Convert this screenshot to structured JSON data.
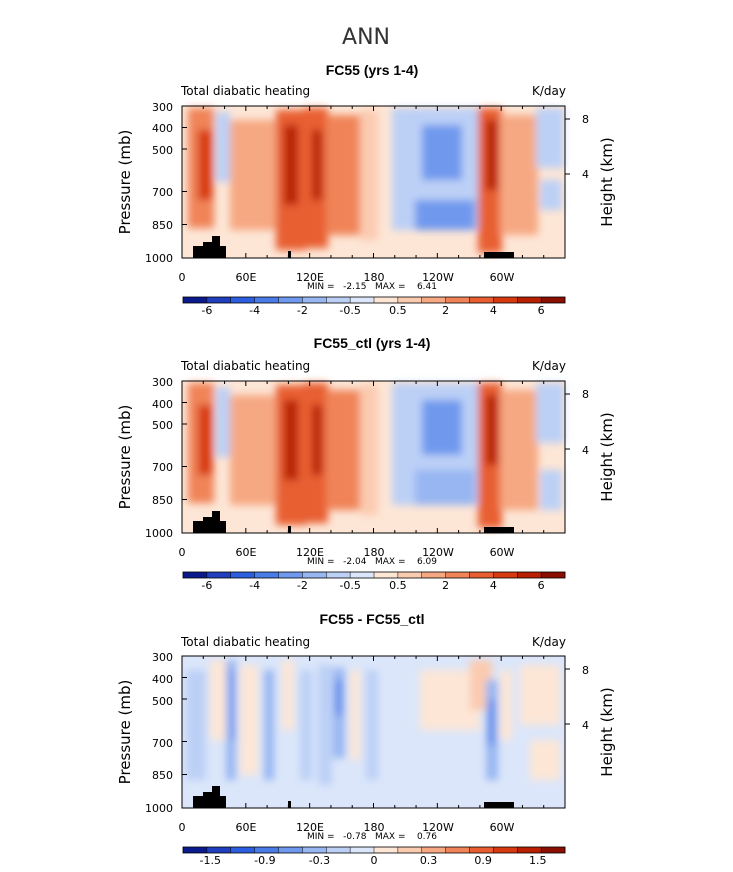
{
  "figure": {
    "title": "ANN"
  },
  "chart_data": [
    {
      "type": "heatmap",
      "title": "FC55 (yrs 1-4)",
      "left_label": "Total diabatic heating",
      "units": "K/day",
      "ylabel": "Pressure (mb)",
      "ylabel_right": "Height (km)",
      "y_ticks": [
        "300",
        "400",
        "500",
        "700",
        "850",
        "1000"
      ],
      "y_right_ticks": [
        "8",
        "4"
      ],
      "x_ticks": [
        "0",
        "60E",
        "120E",
        "180",
        "120W",
        "60W"
      ],
      "stats": "MIN =   -2.15   MAX =    6.41",
      "colorbar_labels": [
        "-6",
        "-4",
        "-2",
        "-0.5",
        "0.5",
        "2",
        "4",
        "6"
      ],
      "colorbar_colors": [
        "#0a1a8c",
        "#1f3fbf",
        "#2b5fe0",
        "#4a7ce8",
        "#6f99ee",
        "#97b6f2",
        "#bcd0f6",
        "#dbe6fa",
        "#fde6d6",
        "#fbcbb0",
        "#f6a882",
        "#f08458",
        "#e85e30",
        "#d83a10",
        "#b82000",
        "#8a0f00"
      ],
      "extent": [
        0,
        360,
        1000,
        300
      ]
    },
    {
      "type": "heatmap",
      "title": "FC55_ctl (yrs 1-4)",
      "left_label": "Total diabatic heating",
      "units": "K/day",
      "ylabel": "Pressure (mb)",
      "ylabel_right": "Height (km)",
      "y_ticks": [
        "300",
        "400",
        "500",
        "700",
        "850",
        "1000"
      ],
      "y_right_ticks": [
        "8",
        "4"
      ],
      "x_ticks": [
        "0",
        "60E",
        "120E",
        "180",
        "120W",
        "60W"
      ],
      "stats": "MIN =   -2.04   MAX =    6.09",
      "colorbar_labels": [
        "-6",
        "-4",
        "-2",
        "-0.5",
        "0.5",
        "2",
        "4",
        "6"
      ],
      "colorbar_colors": [
        "#0a1a8c",
        "#1f3fbf",
        "#2b5fe0",
        "#4a7ce8",
        "#6f99ee",
        "#97b6f2",
        "#bcd0f6",
        "#dbe6fa",
        "#fde6d6",
        "#fbcbb0",
        "#f6a882",
        "#f08458",
        "#e85e30",
        "#d83a10",
        "#b82000",
        "#8a0f00"
      ],
      "extent": [
        0,
        360,
        1000,
        300
      ]
    },
    {
      "type": "heatmap",
      "title": "FC55 - FC55_ctl",
      "left_label": "Total diabatic heating",
      "units": "K/day",
      "ylabel": "Pressure (mb)",
      "ylabel_right": "Height (km)",
      "y_ticks": [
        "300",
        "400",
        "500",
        "700",
        "850",
        "1000"
      ],
      "y_right_ticks": [
        "8",
        "4"
      ],
      "x_ticks": [
        "0",
        "60E",
        "120E",
        "180",
        "120W",
        "60W"
      ],
      "stats": "MIN =   -0.78   MAX =    0.76",
      "colorbar_labels": [
        "-1.5",
        "-0.9",
        "-0.3",
        "0",
        "0.3",
        "0.9",
        "1.5"
      ],
      "colorbar_colors": [
        "#0a1a8c",
        "#1f3fbf",
        "#2b5fe0",
        "#4a7ce8",
        "#6f99ee",
        "#97b6f2",
        "#bcd0f6",
        "#dbe6fa",
        "#fde6d6",
        "#fbcbb0",
        "#f6a882",
        "#f08458",
        "#e85e30",
        "#d83a10",
        "#b82000",
        "#8a0f00"
      ],
      "extent": [
        0,
        360,
        1000,
        300
      ]
    }
  ]
}
